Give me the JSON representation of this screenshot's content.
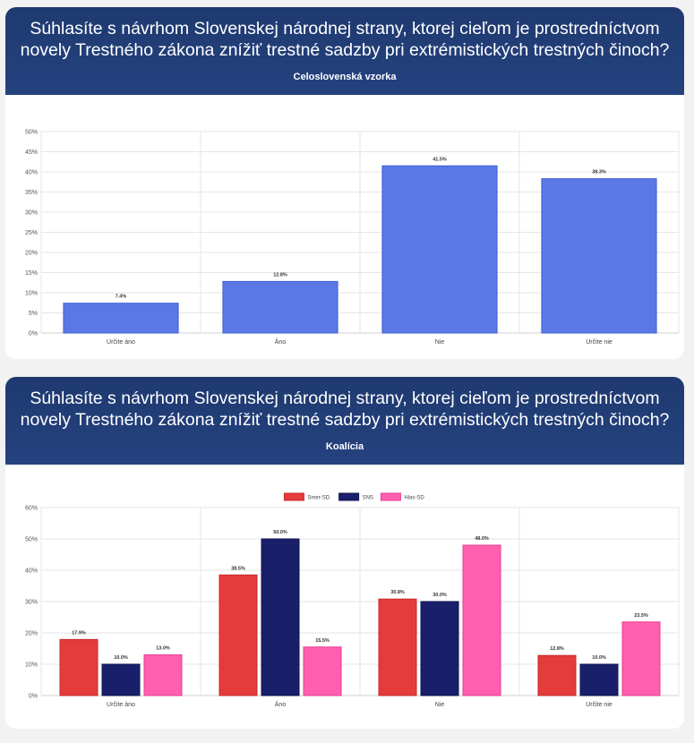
{
  "charts": [
    {
      "title": "Súhlasíte s návrhom Slovenskej národnej strany, ktorej cieľom je prostredníctvom novely Trestného zákona znížiť trestné sadzby pri extrémistických trestných činoch?",
      "subtitle": "Celoslovenská vzorka"
    },
    {
      "title": "Súhlasíte s návrhom Slovenskej národnej strany, ktorej cieľom je prostredníctvom novely Trestného zákona znížiť trestné sadzby pri extrémistických trestných činoch?",
      "subtitle": "Koalícia"
    }
  ],
  "chart_data": [
    {
      "type": "bar",
      "title": "Súhlasíte s návrhom Slovenskej národnej strany, ktorej cieľom je prostredníctvom novely Trestného zákona znížiť trestné sadzby pri extrémistických trestných činoch?",
      "subtitle": "Celoslovenská vzorka",
      "categories": [
        "Určite áno",
        "Áno",
        "Nie",
        "Určite nie"
      ],
      "series": [
        {
          "name": "Celoslovenská vzorka",
          "color": "#5a78e6",
          "border": "#3f5fd4",
          "values": [
            7.4,
            12.8,
            41.5,
            38.3
          ]
        }
      ],
      "value_labels": [
        "7.4%",
        "12.8%",
        "41.5%",
        "38.3%"
      ],
      "yticks": [
        "0%",
        "5%",
        "10%",
        "15%",
        "20%",
        "25%",
        "30%",
        "35%",
        "40%",
        "45%",
        "50%"
      ],
      "ylim": [
        0,
        50
      ],
      "grid": true,
      "legend": false
    },
    {
      "type": "bar",
      "title": "Súhlasíte s návrhom Slovenskej národnej strany, ktorej cieľom je prostredníctvom novely Trestného zákona znížiť trestné sadzby pri extrémistických trestných činoch?",
      "subtitle": "Koalícia",
      "categories": [
        "Určite áno",
        "Áno",
        "Nie",
        "Určite nie"
      ],
      "series": [
        {
          "name": "Smer-SD",
          "color": "#e53b3b",
          "border": "#c92a2a",
          "values": [
            17.9,
            38.5,
            30.8,
            12.8
          ],
          "labels": [
            "17.9%",
            "38.5%",
            "30.8%",
            "12.8%"
          ]
        },
        {
          "name": "SNS",
          "color": "#1a1f6b",
          "border": "#10144f",
          "values": [
            10.0,
            50.0,
            30.0,
            10.0
          ],
          "labels": [
            "10.0%",
            "50.0%",
            "30.0%",
            "10.0%"
          ]
        },
        {
          "name": "Hlas-SD",
          "color": "#ff5fae",
          "border": "#e63e94",
          "values": [
            13.0,
            15.5,
            48.0,
            23.5
          ],
          "labels": [
            "13.0%",
            "15.5%",
            "48.0%",
            "23.5%"
          ]
        }
      ],
      "yticks": [
        "0%",
        "10%",
        "20%",
        "30%",
        "40%",
        "50%",
        "60%"
      ],
      "ylim": [
        0,
        60
      ],
      "grid": true,
      "legend": "top-center"
    }
  ]
}
